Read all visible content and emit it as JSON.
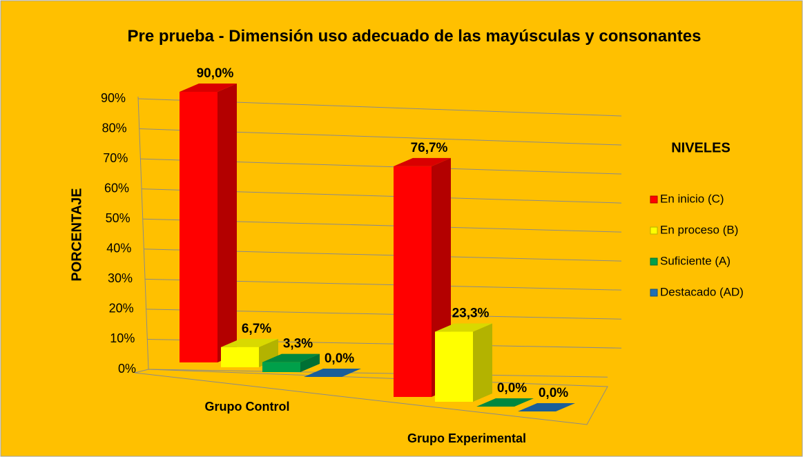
{
  "chart_data": {
    "type": "bar3d",
    "title": "Pre prueba - Dimensión uso adecuado de las mayúsculas y consonantes",
    "y_label": "PORCENTAJE",
    "legend_title": "NIVELES",
    "categories": [
      "Grupo Control",
      "Grupo Experimental"
    ],
    "series": [
      {
        "name": "En inicio (C)",
        "color": "#ff0000",
        "values": [
          90.0,
          76.7
        ],
        "value_labels": [
          "90,0%",
          "76,7%"
        ]
      },
      {
        "name": "En proceso (B)",
        "color": "#ffff00",
        "values": [
          6.7,
          23.3
        ],
        "value_labels": [
          "6,7%",
          "23,3%"
        ]
      },
      {
        "name": "Suficiente (A)",
        "color": "#00a04a",
        "values": [
          3.3,
          0.0
        ],
        "value_labels": [
          "3,3%",
          "0,0%"
        ]
      },
      {
        "name": "Destacado (AD)",
        "color": "#1f6fb4",
        "values": [
          0.0,
          0.0
        ],
        "value_labels": [
          "0,0%",
          "0,0%"
        ]
      }
    ],
    "ylim": [
      0,
      90
    ],
    "yticks": [
      {
        "value": 0,
        "label": "0%"
      },
      {
        "value": 10,
        "label": "10%"
      },
      {
        "value": 20,
        "label": "20%"
      },
      {
        "value": 30,
        "label": "30%"
      },
      {
        "value": 40,
        "label": "40%"
      },
      {
        "value": 50,
        "label": "50%"
      },
      {
        "value": 60,
        "label": "60%"
      },
      {
        "value": 70,
        "label": "70%"
      },
      {
        "value": 80,
        "label": "80%"
      },
      {
        "value": 90,
        "label": "90%"
      }
    ],
    "grid": true,
    "legend": "right"
  }
}
